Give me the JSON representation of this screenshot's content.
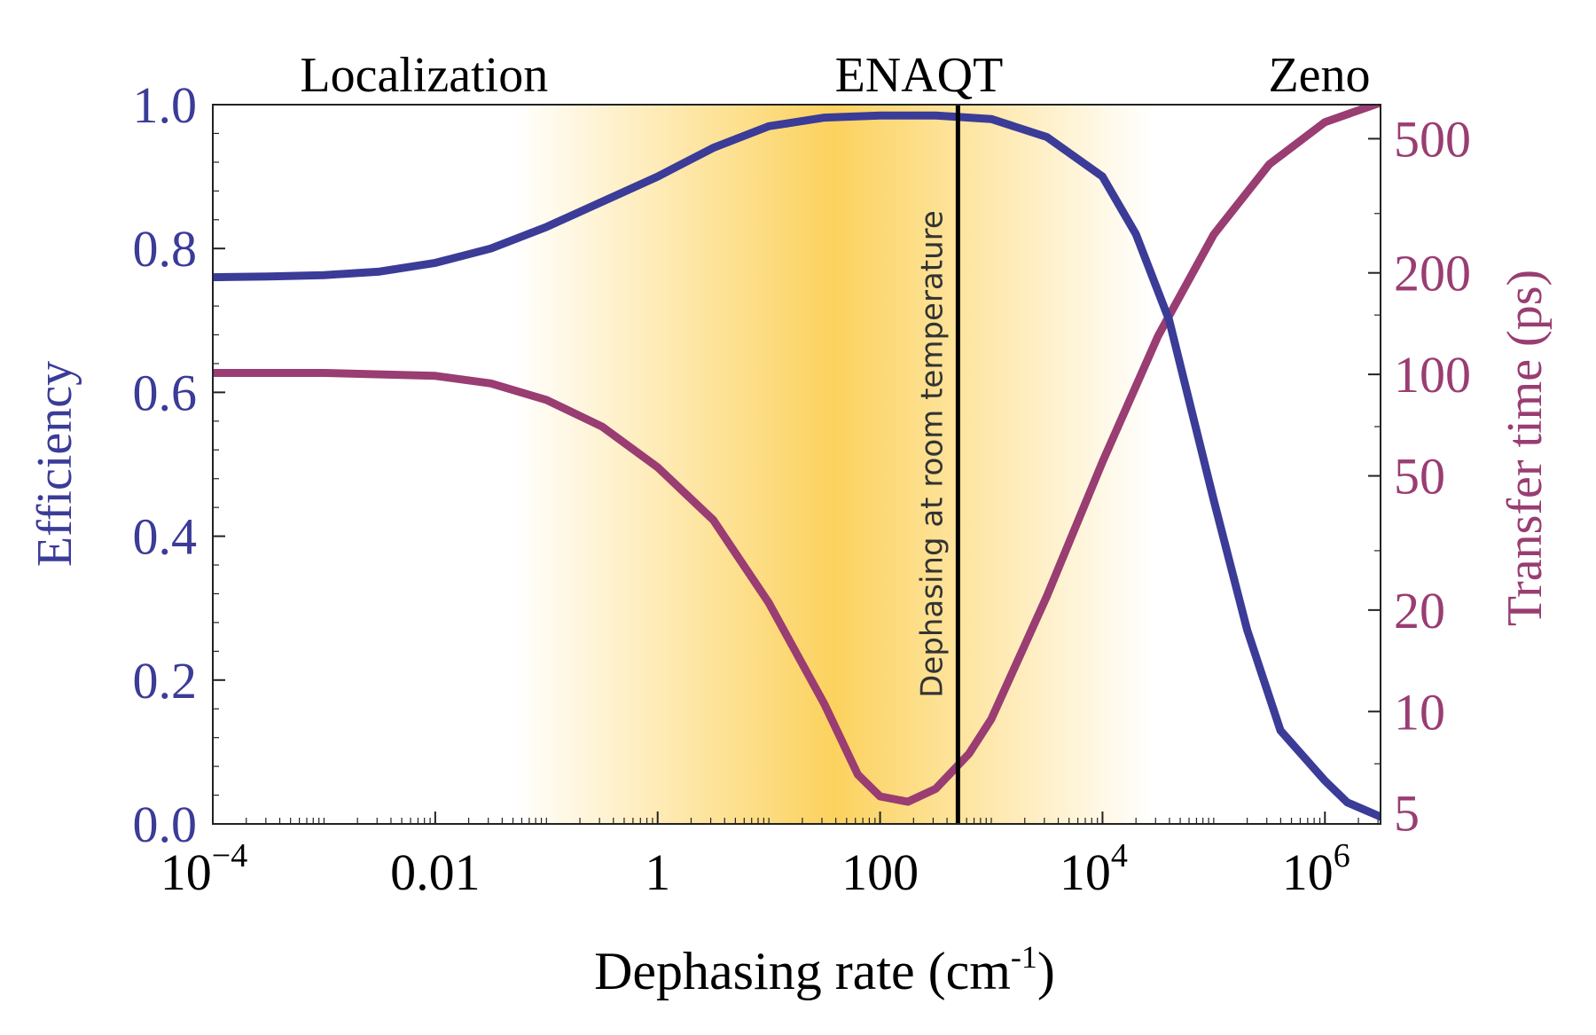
{
  "colors": {
    "efficiency": "#3b3b98",
    "transfer": "#993d72",
    "axis": "#222222",
    "band": "#fcd25e",
    "vline": "#000000"
  },
  "regions": [
    {
      "label": "Localization",
      "x_log10": -2.1
    },
    {
      "label": "ENAQT",
      "x_log10": 2.35
    },
    {
      "label": "Zeno",
      "x_log10": 5.95
    }
  ],
  "vline": {
    "label": "Dephasing at room temperature",
    "x_log10": 2.7
  },
  "chart_data": {
    "type": "line",
    "title": "",
    "xlabel": "Dephasing rate (cm",
    "xlabel_sup": "-1",
    "xlabel_end": ")",
    "ylabel_left": "Efficiency",
    "ylabel_right": "Transfer time (ps)",
    "x_scale": "log",
    "xlim_log10": [
      -4,
      6.5
    ],
    "ylim_left": [
      0,
      1
    ],
    "ylim_right_log10": [
      0.6667,
      2.8
    ],
    "x_ticks": [
      {
        "log10": -4,
        "base": "10",
        "exp": "−4"
      },
      {
        "log10": -2,
        "base": "0.01",
        "exp": ""
      },
      {
        "log10": 0,
        "base": "1",
        "exp": ""
      },
      {
        "log10": 2,
        "base": "100",
        "exp": ""
      },
      {
        "log10": 4,
        "base": "10",
        "exp": "4"
      },
      {
        "log10": 6,
        "base": "10",
        "exp": "6"
      }
    ],
    "y_left_ticks": [
      "0.0",
      "0.2",
      "0.4",
      "0.6",
      "0.8",
      "1.0"
    ],
    "y_right_ticks": [
      "5",
      "10",
      "20",
      "50",
      "100",
      "200",
      "500"
    ],
    "series": [
      {
        "name": "Efficiency",
        "axis": "left",
        "x_log10": [
          -4,
          -3.5,
          -3,
          -2.5,
          -2,
          -1.5,
          -1,
          -0.5,
          0,
          0.5,
          1,
          1.5,
          2,
          2.5,
          3,
          3.5,
          4,
          4.3,
          4.6,
          5,
          5.3,
          5.6,
          6,
          6.2,
          6.5
        ],
        "values": [
          0.76,
          0.761,
          0.763,
          0.768,
          0.78,
          0.8,
          0.83,
          0.865,
          0.9,
          0.94,
          0.97,
          0.982,
          0.985,
          0.985,
          0.98,
          0.955,
          0.9,
          0.82,
          0.7,
          0.45,
          0.27,
          0.13,
          0.06,
          0.03,
          0.01
        ]
      },
      {
        "name": "Transfer time (ps)",
        "axis": "right",
        "x_log10": [
          -4,
          -3,
          -2.5,
          -2,
          -1.5,
          -1,
          -0.5,
          0,
          0.5,
          1,
          1.5,
          1.8,
          2,
          2.25,
          2.5,
          2.8,
          3,
          3.5,
          4,
          4.5,
          5,
          5.5,
          6,
          6.5
        ],
        "values": [
          101,
          101,
          100,
          99,
          94,
          84,
          70,
          53,
          37,
          21,
          10.5,
          6.5,
          5.6,
          5.4,
          5.9,
          7.5,
          9.5,
          22,
          55,
          130,
          260,
          420,
          560,
          640
        ]
      }
    ]
  }
}
